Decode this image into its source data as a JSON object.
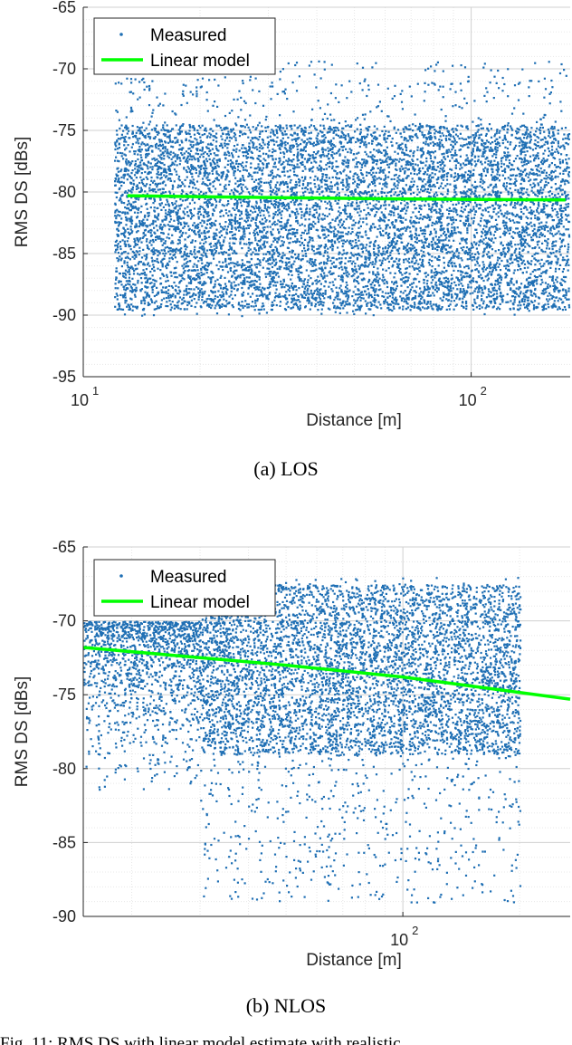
{
  "chart_data": [
    {
      "type": "scatter",
      "panel_caption": "(a) LOS",
      "xlabel": "Distance [m]",
      "ylabel": "RMS DS [dBs]",
      "x_scale": "log",
      "xlim": [
        10,
        180
      ],
      "ylim": [
        -95,
        -65
      ],
      "yticks": [
        -65,
        -70,
        -75,
        -80,
        -85,
        -90,
        -95
      ],
      "ytick_labels": [
        "-65",
        "-70",
        "-75",
        "-80",
        "-85",
        "-90",
        "-95"
      ],
      "xticks": [
        10,
        100
      ],
      "xtick_labels": [
        {
          "base": "10",
          "exp": "1"
        },
        {
          "base": "10",
          "exp": "2"
        }
      ],
      "grid": true,
      "legend_placement": "top-left",
      "series": [
        {
          "name": "Measured",
          "kind": "markers",
          "color": "#1f6fb4",
          "x_range": [
            12,
            178
          ],
          "y_center": -81.5,
          "y_spread_low": -90,
          "y_spread_high": -69
        },
        {
          "name": "Linear model",
          "kind": "line",
          "color": "#00ff00",
          "x": [
            13,
            30,
            60,
            100,
            175
          ],
          "y": [
            -80.3,
            -80.45,
            -80.55,
            -80.6,
            -80.65
          ]
        }
      ]
    },
    {
      "type": "scatter",
      "panel_caption": "(b) NLOS",
      "xlabel": "Distance [m]",
      "ylabel": "RMS DS [dBs]",
      "x_scale": "log",
      "xlim": [
        15,
        270
      ],
      "ylim": [
        -90,
        -65
      ],
      "yticks": [
        -65,
        -70,
        -75,
        -80,
        -85,
        -90
      ],
      "ytick_labels": [
        "-65",
        "-70",
        "-75",
        "-80",
        "-85",
        "-90"
      ],
      "xticks": [
        100
      ],
      "xtick_labels": [
        {
          "base": "10",
          "exp": "2"
        }
      ],
      "grid": true,
      "legend_placement": "top-left",
      "series": [
        {
          "name": "Measured",
          "kind": "markers",
          "color": "#1f6fb4",
          "x_range": [
            15,
            270
          ],
          "y_center": -73,
          "y_spread_low": -89,
          "y_spread_high": -65.8
        },
        {
          "name": "Linear model",
          "kind": "line",
          "color": "#00ff00",
          "x": [
            15,
            50,
            100,
            270
          ],
          "y": [
            -71.8,
            -73.0,
            -73.8,
            -75.3
          ]
        }
      ]
    }
  ],
  "footer_text": "Fig. 11: RMS DS with linear model estimate with realistic"
}
